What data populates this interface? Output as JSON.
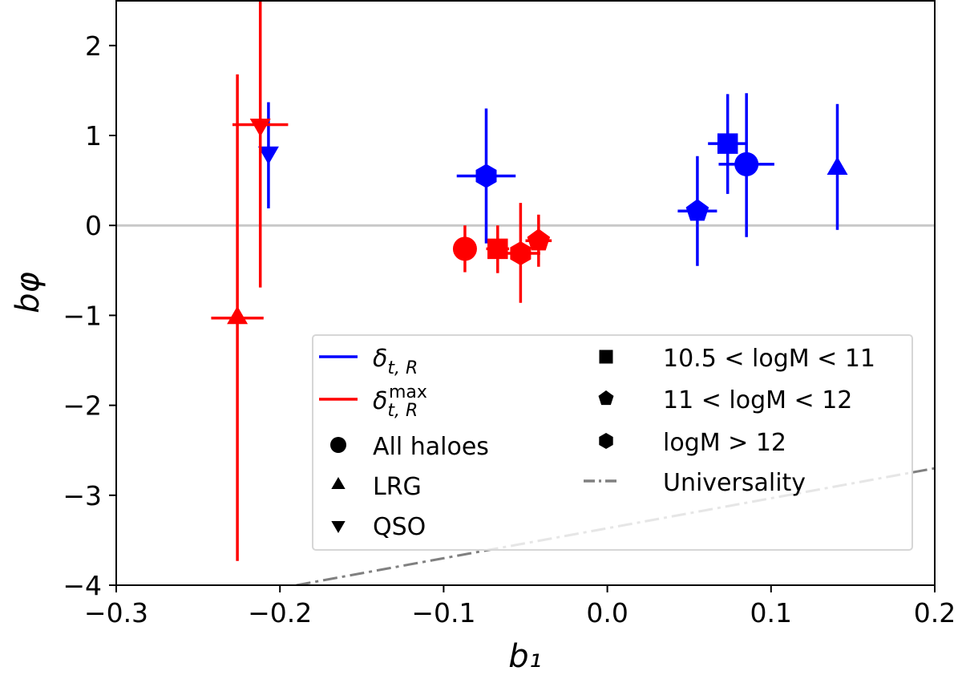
{
  "chart_data": {
    "type": "scatter",
    "xlabel": "b₁",
    "ylabel": "bφ",
    "xlim": [
      -0.3,
      0.2
    ],
    "ylim": [
      -4,
      2.5
    ],
    "xticks": [
      "−0.3",
      "−0.2",
      "−0.1",
      "0.0",
      "0.1",
      "0.2"
    ],
    "xtick_values": [
      -0.3,
      -0.2,
      -0.1,
      0.0,
      0.1,
      0.2
    ],
    "yticks": [
      "2",
      "1",
      "0",
      "−1",
      "−2",
      "−3",
      "−4"
    ],
    "ytick_values": [
      2,
      1,
      0,
      -1,
      -2,
      -3,
      -4
    ],
    "grid": false,
    "zero_line": {
      "y": 0,
      "color": "#c8c8c8"
    },
    "colors": {
      "delta_tR": "#0000ff",
      "delta_tR_max": "#ff0000",
      "universality": "#808080"
    },
    "universality_line": {
      "x": [
        -0.19,
        0.2
      ],
      "y": [
        -4.0,
        -2.7
      ],
      "style": "dash-dot"
    },
    "series": [
      {
        "name": "δt,R",
        "color": "#0000ff",
        "points": [
          {
            "group": "QSO",
            "marker": "triangle-down",
            "x": -0.207,
            "y": 0.81,
            "xerr": 0.003,
            "yerr": [
              0.62,
              0.56
            ]
          },
          {
            "group": "logM > 12",
            "marker": "hexagon",
            "x": -0.074,
            "y": 0.55,
            "xerr": 0.018,
            "yerr": [
              0.75,
              0.75
            ]
          },
          {
            "group": "11 < logM < 12",
            "marker": "pentagon",
            "x": 0.055,
            "y": 0.16,
            "xerr": 0.012,
            "yerr": [
              0.61,
              0.61
            ]
          },
          {
            "group": "10.5 < logM < 11",
            "marker": "square",
            "x": 0.0735,
            "y": 0.91,
            "xerr": 0.012,
            "yerr": [
              0.56,
              0.55
            ]
          },
          {
            "group": "All haloes",
            "marker": "circle",
            "x": 0.085,
            "y": 0.68,
            "xerr": 0.017,
            "yerr": [
              0.81,
              0.79
            ]
          },
          {
            "group": "LRG",
            "marker": "triangle-up",
            "x": 0.1405,
            "y": 0.63,
            "xerr": 0.0,
            "yerr": [
              0.68,
              0.72
            ]
          }
        ]
      },
      {
        "name": "δt,R max",
        "color": "#ff0000",
        "points": [
          {
            "group": "LRG",
            "marker": "triangle-up",
            "x": -0.226,
            "y": -1.03,
            "xerr": 0.016,
            "yerr": [
              2.7,
              2.71
            ]
          },
          {
            "group": "QSO",
            "marker": "triangle-down",
            "x": -0.212,
            "y": 1.12,
            "xerr": 0.017,
            "yerr": [
              1.81,
              1.8
            ]
          },
          {
            "group": "All haloes",
            "marker": "circle",
            "x": -0.087,
            "y": -0.26,
            "xerr": 0.007,
            "yerr": [
              0.26,
              0.26
            ]
          },
          {
            "group": "10.5 < logM < 11",
            "marker": "square",
            "x": -0.067,
            "y": -0.26,
            "xerr": 0.007,
            "yerr": [
              0.27,
              0.26
            ]
          },
          {
            "group": "logM > 12",
            "marker": "hexagon",
            "x": -0.053,
            "y": -0.31,
            "xerr": 0.012,
            "yerr": [
              0.55,
              0.56
            ]
          },
          {
            "group": "11 < logM < 12",
            "marker": "pentagon",
            "x": -0.042,
            "y": -0.17,
            "xerr": 0.008,
            "yerr": [
              0.29,
              0.29
            ]
          }
        ]
      }
    ],
    "legend": {
      "placement": "lower-right",
      "entries": [
        {
          "label": "δ",
          "sub": "t, R",
          "sup": "",
          "kind": "line",
          "color": "#0000ff"
        },
        {
          "label": "δ",
          "sub": "t, R",
          "sup": "max",
          "kind": "line",
          "color": "#ff0000"
        },
        {
          "label": "All haloes",
          "kind": "marker",
          "marker": "circle"
        },
        {
          "label": "LRG",
          "kind": "marker",
          "marker": "triangle-up"
        },
        {
          "label": "QSO",
          "kind": "marker",
          "marker": "triangle-down"
        },
        {
          "label": "10.5 < logM < 11",
          "kind": "marker",
          "marker": "square"
        },
        {
          "label": "11 < logM < 12",
          "kind": "marker",
          "marker": "pentagon"
        },
        {
          "label": "logM > 12",
          "kind": "marker",
          "marker": "hexagon"
        },
        {
          "label": "Universality",
          "kind": "dashdot",
          "color": "#808080"
        }
      ]
    }
  }
}
